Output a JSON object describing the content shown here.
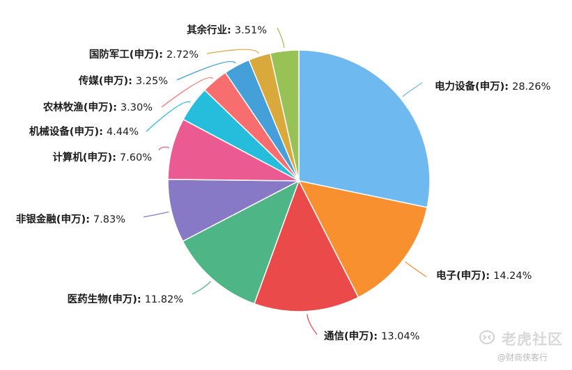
{
  "chart_data": {
    "type": "pie",
    "title": "",
    "slices": [
      {
        "label": "电力设备(申万)",
        "value": 28.26,
        "value_text": "28.26%",
        "color": "#6ebaf0"
      },
      {
        "label": "电子(申万)",
        "value": 14.24,
        "value_text": "14.24%",
        "color": "#f89030"
      },
      {
        "label": "通信(申万)",
        "value": 13.04,
        "value_text": "13.04%",
        "color": "#ea4a4a"
      },
      {
        "label": "医药生物(申万)",
        "value": 11.82,
        "value_text": "11.82%",
        "color": "#4db586"
      },
      {
        "label": "非银金融(申万)",
        "value": 7.83,
        "value_text": "7.83%",
        "color": "#8879c7"
      },
      {
        "label": "计算机(申万)",
        "value": 7.6,
        "value_text": "7.60%",
        "color": "#ec5a92"
      },
      {
        "label": "机械设备(申万)",
        "value": 4.44,
        "value_text": "4.44%",
        "color": "#26bcdc"
      },
      {
        "label": "农林牧渔(申万)",
        "value": 3.3,
        "value_text": "3.30%",
        "color": "#f86d6d"
      },
      {
        "label": "传媒(申万)",
        "value": 3.25,
        "value_text": "3.25%",
        "color": "#459fd8"
      },
      {
        "label": "国防军工(申万)",
        "value": 2.72,
        "value_text": "2.72%",
        "color": "#daa93b"
      },
      {
        "label": "其余行业",
        "value": 3.51,
        "value_text": "3.51%",
        "color": "#98c255"
      }
    ]
  },
  "watermark": {
    "brand": "老虎社区",
    "sub": "@财商侠客行"
  }
}
